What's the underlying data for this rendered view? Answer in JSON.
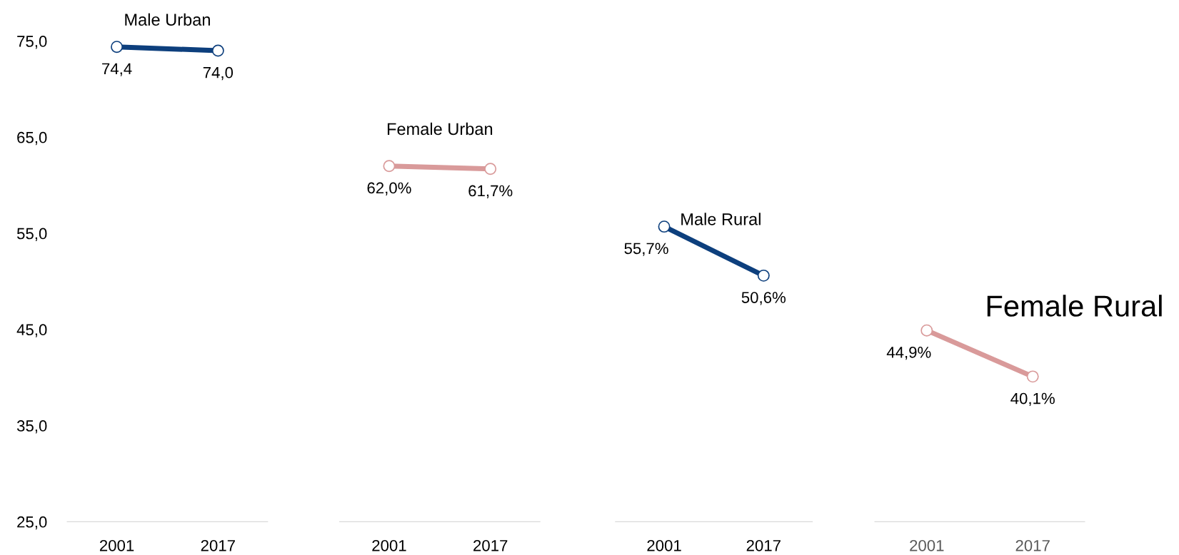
{
  "chart_data": [
    {
      "type": "line",
      "categories": [
        "2001",
        "2017"
      ],
      "ylim": [
        25,
        75
      ],
      "yticks": [
        {
          "value": 25,
          "label": "25,0"
        },
        {
          "value": 35,
          "label": "35,0"
        },
        {
          "value": 45,
          "label": "45,0"
        },
        {
          "value": 55,
          "label": "55,0"
        },
        {
          "value": 65,
          "label": "65,0"
        },
        {
          "value": 75,
          "label": "75,0"
        }
      ],
      "marker": "circle",
      "grid": false,
      "legend": false,
      "series": [
        {
          "name": "Male Urban",
          "color": "#0d3f7d",
          "values": [
            74.4,
            74.0
          ],
          "value_labels": [
            "74,4",
            "74,0"
          ]
        }
      ]
    },
    {
      "type": "line",
      "categories": [
        "2001",
        "2017"
      ],
      "ylim": [
        25,
        75
      ],
      "tick_labels": "x",
      "marker": "circle",
      "grid": false,
      "legend": false,
      "series": [
        {
          "name": "Female Urban",
          "color": "#d99a9a",
          "values": [
            62.0,
            61.7
          ],
          "value_labels": [
            "62,0%",
            "61,7%"
          ]
        }
      ]
    },
    {
      "type": "line",
      "categories": [
        "2001",
        "2017"
      ],
      "ylim": [
        25,
        75
      ],
      "tick_labels": "x",
      "marker": "circle",
      "grid": false,
      "legend": false,
      "series": [
        {
          "name": "Male Rural",
          "color": "#0d3f7d",
          "values": [
            55.7,
            50.6
          ],
          "value_labels": [
            "55,7%",
            "50,6%"
          ]
        }
      ]
    },
    {
      "type": "line",
      "categories": [
        "2001",
        "2017"
      ],
      "ylim": [
        25,
        75
      ],
      "tick_labels": "x",
      "marker": "circle",
      "grid": false,
      "legend": false,
      "series": [
        {
          "name": "Female Rural",
          "color": "#d99a9a",
          "values": [
            44.9,
            40.1
          ],
          "value_labels": [
            "44,9%",
            "40,1%"
          ]
        }
      ]
    }
  ]
}
